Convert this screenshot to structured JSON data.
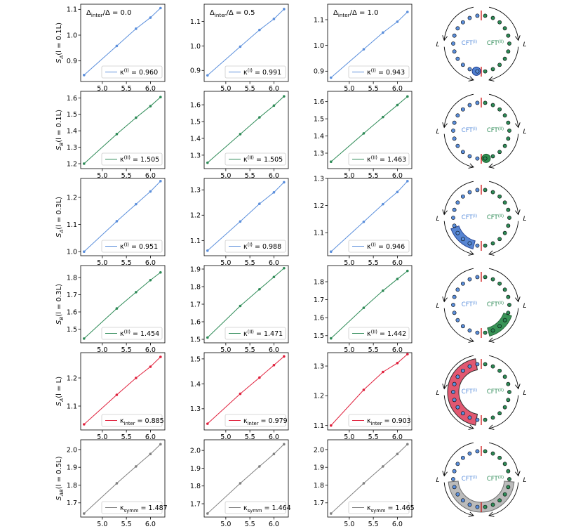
{
  "x_values": [
    4.62,
    5.3,
    5.7,
    6.0,
    6.21
  ],
  "x_ticks": [
    5.0,
    5.5,
    6.0
  ],
  "x_tick_labels": [
    "5.0",
    "5.5",
    "6.0"
  ],
  "column_titles": [
    "Δinter/Δ = 0.0",
    "Δinter/Δ = 0.5",
    "Δinter/Δ = 1.0"
  ],
  "ring_labels": {
    "left_cft": "CFT(I)",
    "right_cft": "CFT(II)",
    "length": "L"
  },
  "colors": {
    "blue": "#5b8fdc",
    "green": "#2e8b57",
    "red": "#e0203c",
    "gray": "#808080",
    "marker_red": "#cc0000",
    "ring_blue_fill": "#4f7fd0",
    "ring_green_fill": "#2f8f4f"
  },
  "chart_data": [
    {
      "type": "line",
      "row_ylabel": "SA(l = 0.1L)",
      "color": "blue",
      "panels": [
        {
          "y": [
            0.845,
            0.958,
            1.025,
            1.068,
            1.105
          ],
          "ylim": [
            0.82,
            1.12
          ],
          "yticks": [
            0.9,
            1.0,
            1.1
          ],
          "ytick_labels": [
            "0.9",
            "1.0",
            "1.1"
          ],
          "legend": "κ(I) = 0.960"
        },
        {
          "y": [
            0.88,
            0.997,
            1.065,
            1.11,
            1.15
          ],
          "ylim": [
            0.855,
            1.17
          ],
          "yticks": [
            0.9,
            1.0,
            1.1
          ],
          "ytick_labels": [
            "0.9",
            "1.0",
            "1.1"
          ],
          "legend": "κ(I) = 0.991"
        },
        {
          "y": [
            0.875,
            0.985,
            1.05,
            1.092,
            1.13
          ],
          "ylim": [
            0.86,
            1.16
          ],
          "yticks": [
            0.9,
            1.0,
            1.1
          ],
          "ytick_labels": [
            "0.9",
            "1.0",
            "1.1"
          ],
          "legend": "κ(I) = 0.943"
        }
      ],
      "ring": {
        "highlight": "bottom-left-small"
      }
    },
    {
      "type": "line",
      "row_ylabel": "SB(l = 0.1L)",
      "color": "green",
      "panels": [
        {
          "y": [
            1.2,
            1.38,
            1.48,
            1.55,
            1.605
          ],
          "ylim": [
            1.17,
            1.64
          ],
          "yticks": [
            1.2,
            1.3,
            1.4,
            1.5,
            1.6
          ],
          "ytick_labels": [
            "1.2",
            "1.3",
            "1.4",
            "1.5",
            "1.6"
          ],
          "legend": "κ(II) = 1.505"
        },
        {
          "y": [
            1.255,
            1.425,
            1.525,
            1.595,
            1.65
          ],
          "ylim": [
            1.22,
            1.68
          ],
          "yticks": [
            1.3,
            1.4,
            1.5,
            1.6
          ],
          "ytick_labels": [
            "1.3",
            "1.4",
            "1.5",
            "1.6"
          ],
          "legend": "κ(II) = 1.505"
        },
        {
          "y": [
            1.25,
            1.415,
            1.51,
            1.58,
            1.63
          ],
          "ylim": [
            1.21,
            1.66
          ],
          "yticks": [
            1.3,
            1.4,
            1.5,
            1.6
          ],
          "ytick_labels": [
            "1.3",
            "1.4",
            "1.5",
            "1.6"
          ],
          "legend": "κ(II) = 1.463"
        }
      ],
      "ring": {
        "highlight": "bottom-right-small"
      }
    },
    {
      "type": "line",
      "row_ylabel": "SA(l = 0.3L)",
      "color": "blue",
      "panels": [
        {
          "y": [
            1.0,
            1.112,
            1.175,
            1.222,
            1.26
          ],
          "ylim": [
            0.985,
            1.27
          ],
          "yticks": [
            1.0,
            1.1,
            1.2
          ],
          "ytick_labels": [
            "1.0",
            "1.1",
            "1.2"
          ],
          "legend": "κ(I) = 0.951"
        },
        {
          "y": [
            1.06,
            1.175,
            1.245,
            1.29,
            1.33
          ],
          "ylim": [
            1.04,
            1.345
          ],
          "yticks": [
            1.1,
            1.2,
            1.3
          ],
          "ytick_labels": [
            "1.1",
            "1.2",
            "1.3"
          ],
          "legend": "κ(I) = 0.988"
        },
        {
          "y": [
            1.03,
            1.14,
            1.205,
            1.25,
            1.29
          ],
          "ylim": [
            1.015,
            1.3
          ],
          "yticks": [
            1.1,
            1.2,
            1.3
          ],
          "ytick_labels": [
            "1.1",
            "1.2",
            "1.3"
          ],
          "legend": "κ(I) = 0.946"
        }
      ],
      "ring": {
        "highlight": "left-lower-arc"
      }
    },
    {
      "type": "line",
      "row_ylabel": "SB(l = 0.3L)",
      "color": "green",
      "panels": [
        {
          "y": [
            1.445,
            1.62,
            1.715,
            1.785,
            1.83
          ],
          "ylim": [
            1.42,
            1.87
          ],
          "yticks": [
            1.5,
            1.6,
            1.7,
            1.8
          ],
          "ytick_labels": [
            "1.5",
            "1.6",
            "1.7",
            "1.8"
          ],
          "legend": "κ(II) = 1.454"
        },
        {
          "y": [
            1.51,
            1.69,
            1.785,
            1.855,
            1.905
          ],
          "ylim": [
            1.48,
            1.92
          ],
          "yticks": [
            1.5,
            1.6,
            1.7,
            1.8,
            1.9
          ],
          "ytick_labels": [
            "1.5",
            "1.6",
            "1.7",
            "1.8",
            "1.9"
          ],
          "legend": "κ(II) = 1.471"
        },
        {
          "y": [
            1.485,
            1.655,
            1.75,
            1.815,
            1.86
          ],
          "ylim": [
            1.46,
            1.89
          ],
          "yticks": [
            1.5,
            1.6,
            1.7,
            1.8
          ],
          "ytick_labels": [
            "1.5",
            "1.6",
            "1.7",
            "1.8"
          ],
          "legend": "κ(II) = 1.442"
        }
      ],
      "ring": {
        "highlight": "right-lower-arc"
      }
    },
    {
      "type": "line",
      "row_ylabel": "SA(l = L)",
      "color": "red",
      "panels": [
        {
          "y": [
            1.035,
            1.14,
            1.2,
            1.24,
            1.275
          ],
          "ylim": [
            1.015,
            1.29
          ],
          "yticks": [
            1.1,
            1.2
          ],
          "ytick_labels": [
            "1.1",
            "1.2"
          ],
          "legend": "κinter = 0.885"
        },
        {
          "y": [
            1.24,
            1.36,
            1.425,
            1.475,
            1.51
          ],
          "ylim": [
            1.215,
            1.525
          ],
          "yticks": [
            1.3,
            1.4,
            1.5
          ],
          "ytick_labels": [
            "1.3",
            "1.4",
            "1.5"
          ],
          "legend": "κinter = 0.979"
        },
        {
          "y": [
            1.1,
            1.22,
            1.28,
            1.31,
            1.34
          ],
          "ylim": [
            1.085,
            1.345
          ],
          "yticks": [
            1.1,
            1.2,
            1.3
          ],
          "ytick_labels": [
            "1.1",
            "1.2",
            "1.3"
          ],
          "legend": "κinter = 0.903"
        }
      ],
      "ring": {
        "highlight": "left-full"
      }
    },
    {
      "type": "line",
      "row_ylabel": "SAB(l = 0.5L)",
      "color": "gray",
      "panels": [
        {
          "y": [
            1.64,
            1.81,
            1.905,
            1.975,
            2.03
          ],
          "ylim": [
            1.62,
            2.055
          ],
          "yticks": [
            1.7,
            1.8,
            1.9,
            2.0
          ],
          "ytick_labels": [
            "1.7",
            "1.8",
            "1.9",
            "2.0"
          ],
          "legend": "κsymm = 1.487"
        },
        {
          "y": [
            1.645,
            1.815,
            1.91,
            1.98,
            2.035
          ],
          "ylim": [
            1.625,
            2.06
          ],
          "yticks": [
            1.7,
            1.8,
            1.9,
            2.0
          ],
          "ytick_labels": [
            "1.7",
            "1.8",
            "1.9",
            "2.0"
          ],
          "legend": "κsymm = 1.464"
        },
        {
          "y": [
            1.64,
            1.81,
            1.905,
            1.975,
            2.03
          ],
          "ylim": [
            1.62,
            2.055
          ],
          "yticks": [
            1.7,
            1.8,
            1.9,
            2.0
          ],
          "ytick_labels": [
            "1.7",
            "1.8",
            "1.9",
            "2.0"
          ],
          "legend": "κsymm = 1.465"
        }
      ],
      "ring": {
        "highlight": "bottom-half"
      }
    }
  ]
}
